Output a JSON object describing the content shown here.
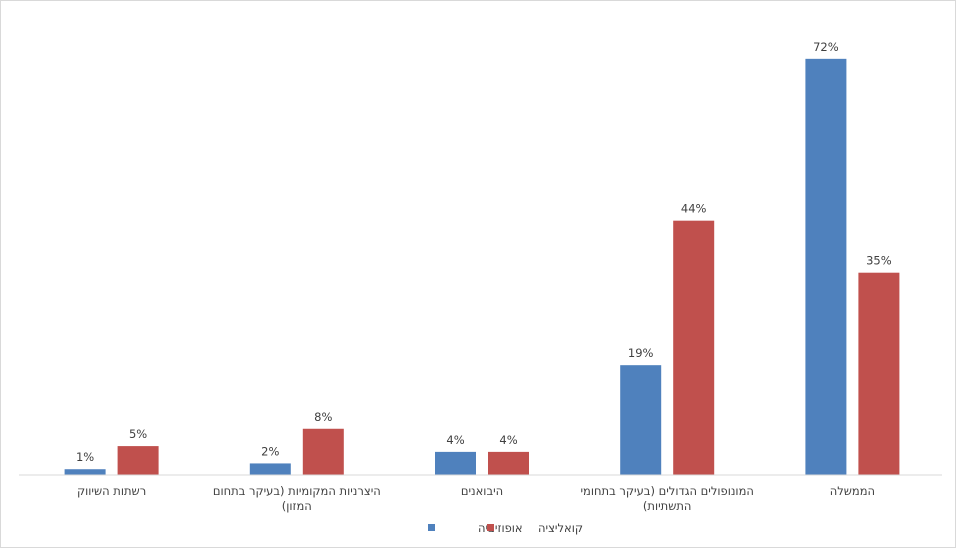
{
  "chart_data": {
    "type": "bar",
    "categories": [
      "רשתות השיווק",
      "היצרניות המקומיות (בעיקר בתחום המזון)",
      "היבואנים",
      "המונופולים הגדולים (בעיקר בתחומי התשתיות)",
      "הממשלה"
    ],
    "category_lines": [
      [
        "רשתות השיווק"
      ],
      [
        "היצרניות המקומיות (בעיקר בתחום",
        "המזון)"
      ],
      [
        "היבואנים"
      ],
      [
        "המונופולים הגדולים (בעיקר בתחומי",
        "התשתיות)"
      ],
      [
        "הממשלה"
      ]
    ],
    "series": [
      {
        "name": "אופוזיציה",
        "color": "#4f81bd",
        "values": [
          1,
          2,
          4,
          19,
          72
        ],
        "labels": [
          "1%",
          "2%",
          "4%",
          "19%",
          "72%"
        ]
      },
      {
        "name": "קואליציה",
        "color": "#c0504d",
        "values": [
          5,
          8,
          4,
          44,
          35
        ],
        "labels": [
          "5%",
          "8%",
          "4%",
          "44%",
          "35%"
        ]
      }
    ],
    "ylim": [
      0,
      75
    ],
    "grid": false,
    "legend_position": "bottom"
  }
}
